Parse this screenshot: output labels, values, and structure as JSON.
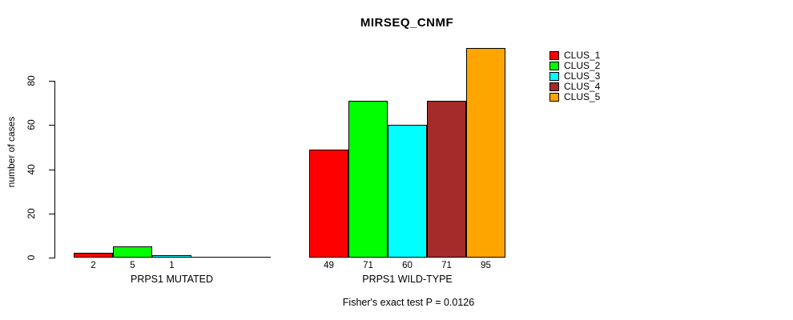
{
  "chart_data": {
    "type": "bar",
    "title": "MIRSEQ_CNMF",
    "ylabel": "number of cases",
    "footnote": "Fisher's exact test P = 0.0126",
    "ylim": [
      0,
      95
    ],
    "yticks": [
      0,
      20,
      40,
      60,
      80
    ],
    "grid": false,
    "legend_position": "right",
    "legend": [
      {
        "label": "CLUS_1",
        "color": "#ff0000"
      },
      {
        "label": "CLUS_2",
        "color": "#00ff00"
      },
      {
        "label": "CLUS_3",
        "color": "#00ffff"
      },
      {
        "label": "CLUS_4",
        "color": "#a52a2a"
      },
      {
        "label": "CLUS_5",
        "color": "#ffa500"
      }
    ],
    "groups": [
      {
        "label": "PRPS1 MUTATED",
        "values": [
          2,
          5,
          1,
          0,
          0
        ],
        "bar_labels": [
          "2",
          "5",
          "1",
          "",
          ""
        ]
      },
      {
        "label": "PRPS1 WILD-TYPE",
        "values": [
          49,
          71,
          60,
          71,
          95
        ],
        "bar_labels": [
          "49",
          "71",
          "60",
          "71",
          "95"
        ]
      }
    ]
  }
}
